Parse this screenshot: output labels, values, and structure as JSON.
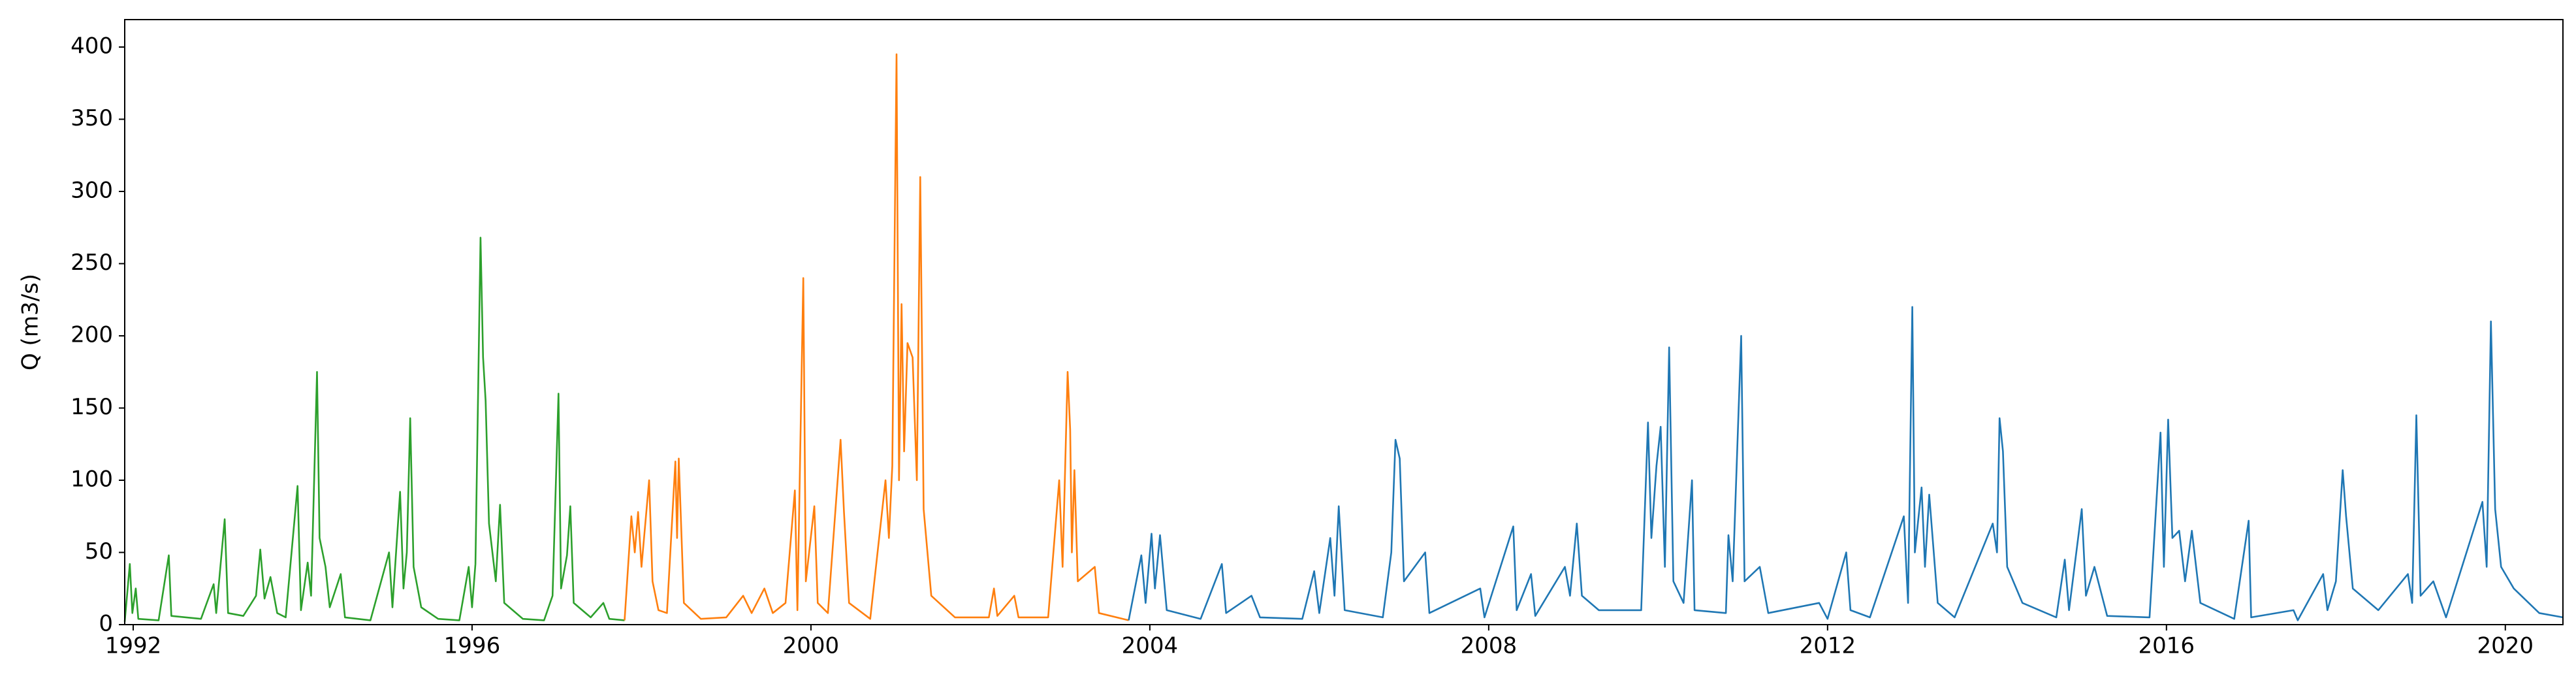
{
  "chart_data": {
    "type": "line",
    "ylabel": "Q (m3/s)",
    "xlim": [
      1991.9,
      2020.68
    ],
    "xticks": [
      1992,
      1996,
      2000,
      2004,
      2008,
      2012,
      2016,
      2020
    ],
    "ylim": [
      0,
      419
    ],
    "yticks": [
      0,
      50,
      100,
      150,
      200,
      250,
      300,
      350,
      400
    ],
    "grid": false,
    "series": [
      {
        "color": "#2ca02c",
        "x": [
          1991.9,
          1991.96,
          1991.99,
          1992.03,
          1992.06,
          1992.3,
          1992.42,
          1992.45,
          1992.8,
          1992.95,
          1992.98,
          1993.08,
          1993.12,
          1993.3,
          1993.45,
          1993.5,
          1993.55,
          1993.62,
          1993.7,
          1993.8,
          1993.94,
          1993.98,
          1994.06,
          1994.1,
          1994.17,
          1994.2,
          1994.27,
          1994.32,
          1994.45,
          1994.5,
          1994.8,
          1995.02,
          1995.06,
          1995.15,
          1995.19,
          1995.23,
          1995.27,
          1995.31,
          1995.4,
          1995.6,
          1995.85,
          1995.96,
          1996.0,
          1996.04,
          1996.1,
          1996.13,
          1996.16,
          1996.2,
          1996.28,
          1996.33,
          1996.38,
          1996.6,
          1996.85,
          1996.95,
          1997.02,
          1997.05,
          1997.12,
          1997.16,
          1997.2,
          1997.4,
          1997.55,
          1997.62,
          1997.8
        ],
        "values": [
          2,
          42,
          8,
          25,
          4,
          3,
          48,
          6,
          4,
          28,
          8,
          73,
          8,
          6,
          20,
          52,
          18,
          33,
          8,
          5,
          96,
          10,
          43,
          20,
          175,
          60,
          40,
          12,
          35,
          5,
          3,
          50,
          12,
          92,
          25,
          50,
          143,
          40,
          12,
          4,
          3,
          40,
          12,
          42,
          268,
          185,
          155,
          70,
          30,
          83,
          15,
          4,
          3,
          20,
          160,
          25,
          48,
          82,
          15,
          5,
          15,
          4,
          3
        ]
      },
      {
        "color": "#ff7f0e",
        "x": [
          1997.8,
          1997.88,
          1997.92,
          1997.96,
          1998.0,
          1998.09,
          1998.13,
          1998.2,
          1998.3,
          1998.4,
          1998.42,
          1998.44,
          1998.5,
          1998.7,
          1999.0,
          1999.2,
          1999.3,
          1999.45,
          1999.55,
          1999.7,
          1999.81,
          1999.84,
          1999.91,
          1999.94,
          2000.04,
          2000.08,
          2000.2,
          2000.35,
          2000.39,
          2000.45,
          2000.7,
          2000.88,
          2000.92,
          2000.96,
          2001.01,
          2001.04,
          2001.07,
          2001.1,
          2001.14,
          2001.2,
          2001.25,
          2001.29,
          2001.33,
          2001.42,
          2001.7,
          2002.1,
          2002.16,
          2002.2,
          2002.4,
          2002.45,
          2002.8,
          2002.93,
          2002.97,
          2003.03,
          2003.06,
          2003.08,
          2003.11,
          2003.15,
          2003.35,
          2003.4,
          2003.75
        ],
        "values": [
          3,
          75,
          50,
          78,
          40,
          100,
          30,
          10,
          8,
          113,
          60,
          115,
          15,
          4,
          5,
          20,
          8,
          25,
          8,
          15,
          93,
          10,
          240,
          30,
          82,
          15,
          8,
          128,
          78,
          15,
          4,
          100,
          60,
          110,
          395,
          100,
          222,
          120,
          195,
          185,
          100,
          310,
          80,
          20,
          5,
          5,
          25,
          6,
          20,
          5,
          5,
          100,
          40,
          175,
          135,
          50,
          107,
          30,
          40,
          8,
          3
        ]
      },
      {
        "color": "#1f77b4",
        "x": [
          2003.75,
          2003.9,
          2003.95,
          2004.02,
          2004.06,
          2004.12,
          2004.2,
          2004.6,
          2004.85,
          2004.9,
          2005.2,
          2005.3,
          2005.8,
          2005.94,
          2006.0,
          2006.13,
          2006.18,
          2006.23,
          2006.3,
          2006.75,
          2006.85,
          2006.9,
          2006.95,
          2007.0,
          2007.25,
          2007.3,
          2007.9,
          2007.95,
          2008.29,
          2008.33,
          2008.5,
          2008.55,
          2008.9,
          2008.96,
          2009.04,
          2009.1,
          2009.3,
          2009.8,
          2009.88,
          2009.92,
          2009.98,
          2010.03,
          2010.08,
          2010.13,
          2010.18,
          2010.3,
          2010.4,
          2010.43,
          2010.8,
          2010.83,
          2010.88,
          2010.98,
          2011.02,
          2011.2,
          2011.3,
          2011.9,
          2012.0,
          2012.22,
          2012.27,
          2012.5,
          2012.9,
          2012.95,
          2013.0,
          2013.03,
          2013.11,
          2013.15,
          2013.2,
          2013.3,
          2013.5,
          2013.95,
          2014.0,
          2014.03,
          2014.07,
          2014.12,
          2014.3,
          2014.7,
          2014.8,
          2014.85,
          2015.0,
          2015.05,
          2015.15,
          2015.3,
          2015.8,
          2015.93,
          2015.97,
          2016.02,
          2016.07,
          2016.15,
          2016.22,
          2016.3,
          2016.4,
          2016.8,
          2016.97,
          2017.0,
          2017.5,
          2017.55,
          2017.85,
          2017.9,
          2018.0,
          2018.08,
          2018.12,
          2018.2,
          2018.5,
          2018.85,
          2018.9,
          2018.95,
          2019.0,
          2019.15,
          2019.3,
          2019.73,
          2019.78,
          2019.83,
          2019.88,
          2019.95,
          2020.1,
          2020.4,
          2020.68
        ],
        "values": [
          3,
          48,
          15,
          63,
          25,
          62,
          10,
          4,
          42,
          8,
          20,
          5,
          4,
          37,
          8,
          60,
          20,
          82,
          10,
          5,
          50,
          128,
          115,
          30,
          50,
          8,
          25,
          5,
          68,
          10,
          35,
          6,
          40,
          20,
          70,
          20,
          10,
          10,
          140,
          60,
          110,
          137,
          40,
          192,
          30,
          15,
          100,
          10,
          8,
          62,
          30,
          200,
          30,
          40,
          8,
          15,
          4,
          50,
          10,
          5,
          75,
          15,
          220,
          50,
          95,
          40,
          90,
          15,
          5,
          70,
          50,
          143,
          120,
          40,
          15,
          5,
          45,
          10,
          80,
          20,
          40,
          6,
          5,
          133,
          40,
          142,
          60,
          65,
          30,
          65,
          15,
          4,
          72,
          5,
          10,
          3,
          35,
          10,
          30,
          107,
          75,
          25,
          10,
          35,
          15,
          145,
          20,
          30,
          5,
          85,
          40,
          210,
          80,
          40,
          25,
          8,
          5
        ]
      }
    ]
  }
}
